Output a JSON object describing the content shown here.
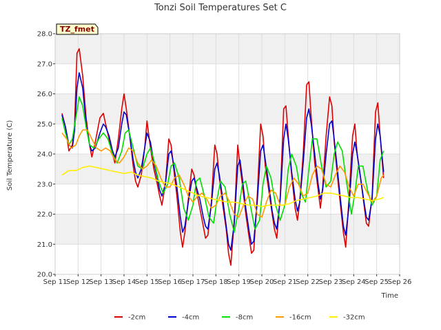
{
  "chart_data": {
    "type": "line",
    "title": "Tonzi Soil Temperatures Set C",
    "xlabel": "Time",
    "ylabel": "Soil Temperature (C)",
    "badge": "TZ_fmet",
    "ylim": [
      20.0,
      28.0
    ],
    "yticks": [
      "20.0",
      "21.0",
      "22.0",
      "23.0",
      "24.0",
      "25.0",
      "26.0",
      "27.0",
      "28.0"
    ],
    "xlim": [
      11,
      26
    ],
    "xticks": [
      "Sep 11",
      "Sep 12",
      "Sep 13",
      "Sep 14",
      "Sep 15",
      "Sep 16",
      "Sep 17",
      "Sep 18",
      "Sep 19",
      "Sep 20",
      "Sep 21",
      "Sep 22",
      "Sep 23",
      "Sep 24",
      "Sep 25",
      "Sep 26"
    ],
    "grid": true,
    "legend_position": "bottom",
    "series": [
      {
        "name": "-2cm",
        "color": "#dd0000",
        "x": [
          11.3,
          11.45,
          11.6,
          11.75,
          11.85,
          11.95,
          12.05,
          12.2,
          12.35,
          12.5,
          12.6,
          12.75,
          12.95,
          13.1,
          13.2,
          13.35,
          13.5,
          13.6,
          13.75,
          13.9,
          14.0,
          14.1,
          14.25,
          14.4,
          14.5,
          14.6,
          14.75,
          14.9,
          15.0,
          15.15,
          15.3,
          15.45,
          15.55,
          15.65,
          15.8,
          15.95,
          16.05,
          16.15,
          16.3,
          16.45,
          16.55,
          16.65,
          16.8,
          16.95,
          17.05,
          17.15,
          17.3,
          17.45,
          17.55,
          17.65,
          17.8,
          17.95,
          18.05,
          18.15,
          18.3,
          18.45,
          18.55,
          18.65,
          18.8,
          18.95,
          19.05,
          19.15,
          19.3,
          19.45,
          19.55,
          19.65,
          19.8,
          19.95,
          20.05,
          20.15,
          20.3,
          20.45,
          20.55,
          20.65,
          20.8,
          20.95,
          21.05,
          21.15,
          21.3,
          21.45,
          21.55,
          21.65,
          21.8,
          21.95,
          22.05,
          22.15,
          22.3,
          22.45,
          22.55,
          22.65,
          22.8,
          22.95,
          23.05,
          23.15,
          23.3,
          23.45,
          23.55,
          23.65,
          23.8,
          23.95,
          24.05,
          24.15,
          24.3,
          24.45,
          24.55,
          24.65,
          24.8,
          24.95,
          25.05,
          25.15,
          25.3
        ],
        "values": [
          25.35,
          24.9,
          24.1,
          24.3,
          25.0,
          27.35,
          27.5,
          26.6,
          25.2,
          24.3,
          23.9,
          24.4,
          25.2,
          25.35,
          25.0,
          24.5,
          24.0,
          23.7,
          24.5,
          25.5,
          26.0,
          25.5,
          24.6,
          23.6,
          23.1,
          22.9,
          23.3,
          24.2,
          25.1,
          24.2,
          23.5,
          23.0,
          22.6,
          22.3,
          23.0,
          24.5,
          24.3,
          23.6,
          22.6,
          21.4,
          20.9,
          21.4,
          22.5,
          23.5,
          23.3,
          22.8,
          22.2,
          21.6,
          21.2,
          21.3,
          22.4,
          24.3,
          24.0,
          23.2,
          22.3,
          21.5,
          20.7,
          20.3,
          21.8,
          24.3,
          23.6,
          23.0,
          22.0,
          21.2,
          20.7,
          20.8,
          22.6,
          25.0,
          24.6,
          23.6,
          22.8,
          22.0,
          21.5,
          21.2,
          22.6,
          25.5,
          25.6,
          24.6,
          23.3,
          22.2,
          21.8,
          22.4,
          24.0,
          26.3,
          26.4,
          25.2,
          23.7,
          22.8,
          22.2,
          22.9,
          24.6,
          25.9,
          25.6,
          24.4,
          23.2,
          22.1,
          21.4,
          20.9,
          22.6,
          24.6,
          25.0,
          24.0,
          23.2,
          22.3,
          21.7,
          21.6,
          22.6,
          25.4,
          25.7,
          24.6,
          23.2
        ]
      },
      {
        "name": "-4cm",
        "color": "#0000cc",
        "x": [
          11.3,
          11.45,
          11.6,
          11.75,
          11.85,
          11.95,
          12.05,
          12.2,
          12.35,
          12.5,
          12.6,
          12.75,
          12.95,
          13.1,
          13.2,
          13.35,
          13.5,
          13.6,
          13.75,
          13.9,
          14.0,
          14.1,
          14.25,
          14.4,
          14.5,
          14.6,
          14.75,
          14.9,
          15.0,
          15.15,
          15.3,
          15.45,
          15.55,
          15.65,
          15.8,
          15.95,
          16.05,
          16.15,
          16.3,
          16.45,
          16.55,
          16.65,
          16.8,
          16.95,
          17.05,
          17.15,
          17.3,
          17.45,
          17.55,
          17.65,
          17.8,
          17.95,
          18.05,
          18.15,
          18.3,
          18.45,
          18.55,
          18.65,
          18.8,
          18.95,
          19.05,
          19.15,
          19.3,
          19.45,
          19.55,
          19.65,
          19.8,
          19.95,
          20.05,
          20.15,
          20.3,
          20.45,
          20.55,
          20.65,
          20.8,
          20.95,
          21.05,
          21.15,
          21.3,
          21.45,
          21.55,
          21.65,
          21.8,
          21.95,
          22.05,
          22.15,
          22.3,
          22.45,
          22.55,
          22.65,
          22.8,
          22.95,
          23.05,
          23.15,
          23.3,
          23.45,
          23.55,
          23.65,
          23.8,
          23.95,
          24.05,
          24.15,
          24.3,
          24.45,
          24.55,
          24.65,
          24.8,
          24.95,
          25.05,
          25.15,
          25.3
        ],
        "values": [
          25.3,
          24.9,
          24.3,
          24.2,
          24.8,
          26.2,
          26.7,
          26.2,
          25.0,
          24.3,
          24.1,
          24.2,
          24.7,
          25.0,
          24.9,
          24.6,
          24.1,
          23.9,
          24.2,
          25.0,
          25.4,
          25.3,
          24.6,
          23.8,
          23.4,
          23.2,
          23.5,
          24.2,
          24.7,
          24.4,
          23.7,
          23.2,
          22.8,
          22.6,
          23.0,
          24.0,
          24.1,
          23.7,
          22.9,
          21.9,
          21.4,
          21.6,
          22.4,
          23.1,
          23.2,
          22.9,
          22.5,
          21.9,
          21.6,
          21.5,
          22.3,
          23.5,
          23.7,
          23.3,
          22.5,
          21.6,
          21.0,
          20.8,
          21.7,
          23.6,
          23.8,
          23.2,
          22.2,
          21.4,
          21.0,
          21.1,
          22.4,
          24.1,
          24.3,
          23.8,
          23.0,
          22.1,
          21.7,
          21.5,
          22.5,
          24.5,
          25.0,
          24.5,
          23.4,
          22.5,
          22.1,
          22.4,
          23.7,
          25.2,
          25.5,
          25.0,
          24.0,
          23.0,
          22.5,
          22.8,
          24.0,
          25.0,
          25.1,
          24.5,
          23.4,
          22.3,
          21.6,
          21.3,
          22.3,
          24.0,
          24.4,
          24.0,
          23.2,
          22.4,
          21.9,
          21.8,
          22.5,
          24.5,
          25.0,
          24.6,
          23.4
        ]
      },
      {
        "name": "-8cm",
        "color": "#00dd00",
        "x": [
          11.3,
          11.45,
          11.6,
          11.75,
          11.9,
          12.05,
          12.2,
          12.35,
          12.5,
          12.7,
          12.9,
          13.1,
          13.3,
          13.5,
          13.7,
          13.9,
          14.05,
          14.2,
          14.4,
          14.6,
          14.8,
          15.0,
          15.15,
          15.3,
          15.5,
          15.7,
          15.9,
          16.05,
          16.2,
          16.4,
          16.6,
          16.8,
          17.0,
          17.15,
          17.3,
          17.5,
          17.7,
          17.9,
          18.05,
          18.2,
          18.4,
          18.6,
          18.8,
          19.0,
          19.15,
          19.3,
          19.5,
          19.7,
          19.9,
          20.05,
          20.2,
          20.4,
          20.6,
          20.8,
          21.0,
          21.15,
          21.3,
          21.5,
          21.7,
          21.9,
          22.05,
          22.2,
          22.4,
          22.6,
          22.8,
          23.0,
          23.15,
          23.3,
          23.5,
          23.7,
          23.9,
          24.05,
          24.2,
          24.4,
          24.6,
          24.8,
          25.0,
          25.15,
          25.3
        ],
        "values": [
          25.2,
          24.7,
          24.3,
          24.5,
          25.2,
          25.9,
          25.6,
          24.9,
          24.3,
          24.2,
          24.5,
          24.7,
          24.5,
          24.0,
          23.7,
          24.1,
          24.7,
          24.8,
          24.2,
          23.6,
          23.5,
          24.0,
          24.2,
          23.8,
          23.1,
          22.7,
          23.0,
          23.6,
          23.7,
          23.2,
          22.2,
          21.8,
          22.3,
          23.1,
          23.2,
          22.6,
          21.9,
          21.7,
          22.5,
          23.1,
          22.9,
          22.0,
          21.4,
          22.2,
          23.0,
          23.1,
          22.3,
          21.5,
          21.8,
          23.0,
          23.6,
          23.2,
          22.3,
          21.8,
          22.3,
          23.5,
          24.0,
          23.6,
          22.7,
          22.4,
          23.5,
          24.5,
          24.5,
          23.6,
          22.9,
          23.1,
          24.0,
          24.4,
          24.1,
          23.0,
          22.0,
          22.7,
          23.6,
          23.6,
          22.8,
          22.3,
          22.6,
          23.8,
          24.1
        ]
      },
      {
        "name": "-16cm",
        "color": "#ff9900",
        "x": [
          11.3,
          11.5,
          11.7,
          11.9,
          12.05,
          12.2,
          12.4,
          12.6,
          12.8,
          13.0,
          13.2,
          13.4,
          13.6,
          13.8,
          14.0,
          14.2,
          14.4,
          14.6,
          14.8,
          15.0,
          15.2,
          15.4,
          15.6,
          15.8,
          16.0,
          16.2,
          16.4,
          16.6,
          16.8,
          17.0,
          17.2,
          17.4,
          17.6,
          17.8,
          18.0,
          18.2,
          18.4,
          18.6,
          18.8,
          19.0,
          19.2,
          19.4,
          19.6,
          19.8,
          20.0,
          20.2,
          20.4,
          20.6,
          20.8,
          21.0,
          21.2,
          21.4,
          21.6,
          21.8,
          22.0,
          22.2,
          22.4,
          22.6,
          22.8,
          23.0,
          23.2,
          23.4,
          23.6,
          23.8,
          24.0,
          24.2,
          24.4,
          24.6,
          24.8,
          25.0,
          25.2,
          25.3
        ],
        "values": [
          24.7,
          24.5,
          24.2,
          24.3,
          24.6,
          24.8,
          24.8,
          24.5,
          24.2,
          24.1,
          24.2,
          24.1,
          23.8,
          23.7,
          23.9,
          24.2,
          24.1,
          23.7,
          23.5,
          23.6,
          23.8,
          23.6,
          23.2,
          22.9,
          22.9,
          23.2,
          23.3,
          23.0,
          22.6,
          22.4,
          22.6,
          22.7,
          22.5,
          22.2,
          22.3,
          22.6,
          22.7,
          22.4,
          22.0,
          21.9,
          22.3,
          22.6,
          22.5,
          22.0,
          21.9,
          22.4,
          22.8,
          22.7,
          22.3,
          22.3,
          22.9,
          23.2,
          23.0,
          22.6,
          22.7,
          23.3,
          23.6,
          23.5,
          23.0,
          22.9,
          23.3,
          23.6,
          23.4,
          22.9,
          22.6,
          23.0,
          23.0,
          22.7,
          22.4,
          22.6,
          23.2,
          23.3
        ]
      },
      {
        "name": "-32cm",
        "color": "#ffee00",
        "x": [
          11.3,
          11.6,
          11.9,
          12.2,
          12.5,
          12.8,
          13.1,
          13.4,
          13.7,
          14.0,
          14.3,
          14.6,
          14.9,
          15.2,
          15.5,
          15.8,
          16.1,
          16.4,
          16.7,
          17.0,
          17.3,
          17.6,
          17.9,
          18.2,
          18.5,
          18.8,
          19.1,
          19.4,
          19.7,
          20.0,
          20.3,
          20.6,
          20.9,
          21.2,
          21.5,
          21.8,
          22.1,
          22.4,
          22.7,
          23.0,
          23.3,
          23.6,
          23.9,
          24.2,
          24.5,
          24.8,
          25.1,
          25.3
        ],
        "values": [
          23.3,
          23.45,
          23.45,
          23.55,
          23.6,
          23.55,
          23.5,
          23.45,
          23.4,
          23.35,
          23.4,
          23.3,
          23.25,
          23.2,
          23.1,
          23.05,
          23.0,
          22.9,
          22.8,
          22.7,
          22.6,
          22.55,
          22.5,
          22.45,
          22.4,
          22.4,
          22.35,
          22.3,
          22.3,
          22.25,
          22.3,
          22.3,
          22.3,
          22.35,
          22.45,
          22.5,
          22.55,
          22.6,
          22.7,
          22.7,
          22.65,
          22.6,
          22.55,
          22.55,
          22.5,
          22.45,
          22.5,
          22.55
        ]
      }
    ]
  }
}
